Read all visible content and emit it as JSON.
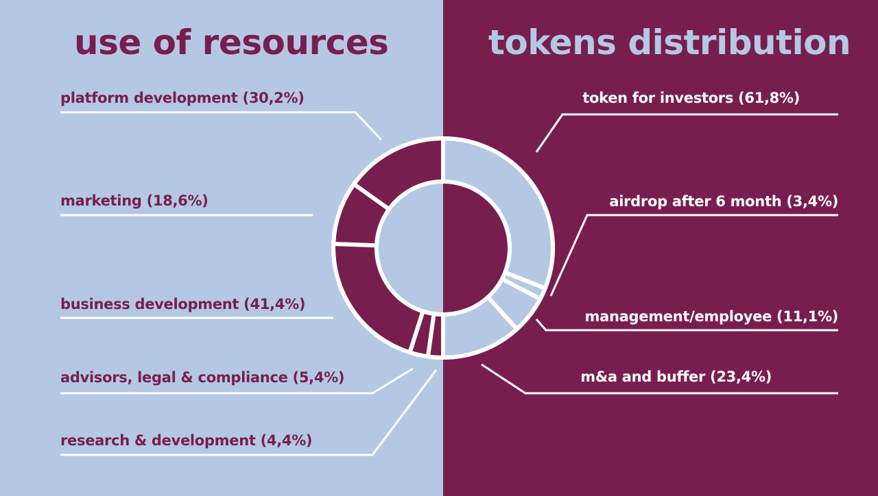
{
  "colors": {
    "left_background": "#b4c8e4",
    "right_background": "#781e4e",
    "divider_lines": "#ffffff"
  },
  "chart_data": [
    {
      "type": "pie",
      "style": "donut-outer-ring-left",
      "title": "use of resources",
      "unit": "%",
      "categories": [
        "platform development",
        "marketing",
        "business development",
        "advisors, legal & compliance",
        "research & development"
      ],
      "values": [
        30.2,
        18.6,
        41.4,
        5.4,
        4.4
      ],
      "labels": [
        "platform development (30,2%)",
        "marketing (18,6%)",
        "business development (41,4%)",
        "advisors, legal & compliance (5,4%)",
        "research & development (4,4%)"
      ]
    },
    {
      "type": "pie",
      "style": "donut-outer-ring-right",
      "title": "tokens distribution",
      "unit": "%",
      "categories": [
        "token for investors",
        "airdrop after 6 month",
        "management/employee",
        "m&a and buffer"
      ],
      "values": [
        61.8,
        3.4,
        11.1,
        23.4
      ],
      "labels": [
        "token for investors (61,8%)",
        "airdrop after 6 month (3,4%)",
        "management/employee (11,1%)",
        "m&a and buffer (23,4%)"
      ]
    }
  ]
}
